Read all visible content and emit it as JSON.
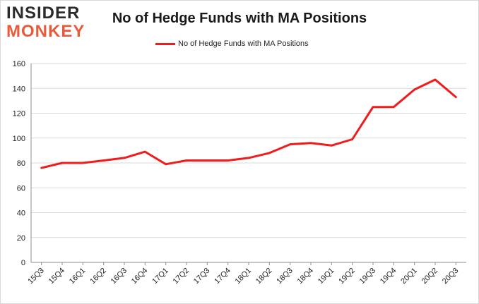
{
  "logo": {
    "line1": "INSIDER",
    "line2": "MONKEY"
  },
  "chart_data": {
    "type": "line",
    "title": "No of Hedge Funds with MA Positions",
    "categories": [
      "15Q3",
      "15Q4",
      "16Q1",
      "16Q2",
      "16Q3",
      "16Q4",
      "17Q1",
      "17Q2",
      "17Q3",
      "17Q4",
      "18Q1",
      "18Q2",
      "18Q3",
      "18Q4",
      "19Q1",
      "19Q2",
      "19Q3",
      "19Q4",
      "20Q1",
      "20Q2",
      "20Q3"
    ],
    "series": [
      {
        "name": "No of Hedge Funds with MA Positions",
        "color": "#ee1c1c",
        "values": [
          76,
          80,
          80,
          82,
          84,
          89,
          79,
          82,
          82,
          82,
          84,
          88,
          95,
          96,
          94,
          99,
          125,
          125,
          139,
          147,
          133
        ]
      }
    ],
    "xlabel": "",
    "ylabel": "",
    "ylim": [
      0,
      160
    ],
    "yticks": [
      0,
      20,
      40,
      60,
      80,
      100,
      120,
      140,
      160
    ],
    "grid": true,
    "legend_position": "top-center"
  }
}
